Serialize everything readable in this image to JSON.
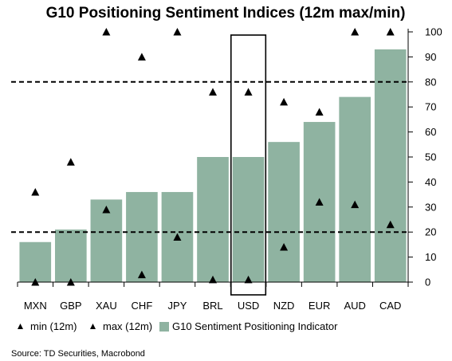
{
  "chart_data": {
    "type": "bar",
    "title": "G10 Positioning Sentiment Indices (12m max/min)",
    "categories": [
      "MXN",
      "GBP",
      "XAU",
      "CHF",
      "JPY",
      "BRL",
      "USD",
      "NZD",
      "EUR",
      "AUD",
      "CAD"
    ],
    "series": [
      {
        "name": "G10 Sentiment Positioning Indicator",
        "kind": "bar",
        "values": [
          16,
          21,
          33,
          36,
          36,
          50,
          50,
          56,
          64,
          74,
          93
        ]
      },
      {
        "name": "min (12m)",
        "kind": "marker",
        "values": [
          0,
          0,
          29,
          3,
          18,
          1,
          1,
          14,
          32,
          31,
          23
        ]
      },
      {
        "name": "max (12m)",
        "kind": "marker",
        "values": [
          36,
          48,
          100,
          90,
          100,
          76,
          76,
          72,
          68,
          100,
          100
        ]
      }
    ],
    "y_ticks": [
      "0",
      "10",
      "20",
      "30",
      "40",
      "50",
      "60",
      "70",
      "80",
      "90",
      "100"
    ],
    "ylim": [
      0,
      100
    ],
    "reference_lines": [
      20,
      80
    ],
    "highlight": "USD",
    "legend_position": "bottom",
    "grid": false,
    "colors": {
      "bar": "#8fb3a1",
      "marker": "#000000",
      "reference": "#000000"
    },
    "source": "Source: TD Securities, Macrobond"
  }
}
